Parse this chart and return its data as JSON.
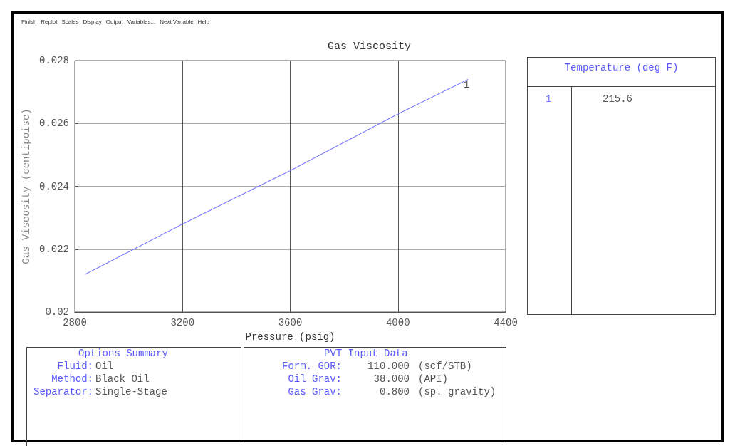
{
  "chart_data": {
    "type": "line",
    "title": "Gas Viscosity",
    "xlabel": "Pressure (psig)",
    "ylabel": "Gas Viscosity (centipoise)",
    "legend_title": "Temperature (deg F)",
    "legend": "right",
    "grid": true,
    "marker": "none",
    "line_style": "solid",
    "x": [
      2839,
      3200,
      3600,
      4000,
      4260
    ],
    "series": [
      {
        "name": "1",
        "color": "#7b7bff",
        "values": [
          0.0212,
          0.0228,
          0.0245,
          0.0263,
          0.0274
        ]
      }
    ],
    "xlim": [
      2800,
      4400
    ],
    "xticks": [
      2800,
      3200,
      3600,
      4000,
      4400
    ],
    "ylim": [
      0.02,
      0.028
    ],
    "yticks": [
      0.02,
      0.022,
      0.024,
      0.026,
      0.028
    ],
    "annotations": [
      "Finish",
      "Replot",
      "Scales",
      "Display",
      "Output",
      "Variables...",
      "Next Variable",
      "Help",
      "Options Summary",
      "Fluid:",
      "Oil",
      "Method:",
      "Black Oil",
      "Separator:",
      "Single-Stage",
      "PVT Input Data",
      "Form. GOR:",
      "110.000",
      "(scf/STB)",
      "Oil Grav:",
      "38.000",
      "(API)",
      "Gas Grav:",
      "0.800",
      "(sp. gravity)",
      "215.6"
    ]
  }
}
